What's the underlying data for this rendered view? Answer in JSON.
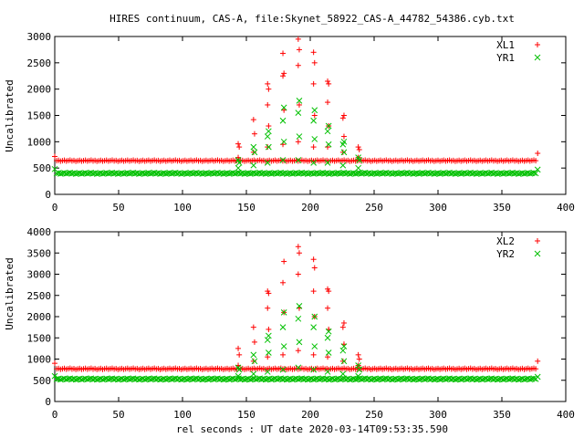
{
  "title": "HIRES continuum, CAS-A, file:Skynet_58922_CAS-A_44782_54386.cyb.txt",
  "xlabel": "rel seconds : UT date 2020-03-14T09:53:35.590",
  "colors": {
    "series1": "#ff0000",
    "series2": "#00c000",
    "axis": "#000000"
  },
  "chart_data": [
    {
      "type": "scatter",
      "ylabel": "Uncalibrated",
      "xlim": [
        0,
        400
      ],
      "ylim": [
        0,
        3000
      ],
      "xticks": [
        0,
        50,
        100,
        150,
        200,
        250,
        300,
        350,
        400
      ],
      "yticks": [
        0,
        500,
        1000,
        1500,
        2000,
        2500,
        3000
      ],
      "legend_position": "top-right",
      "grid": false,
      "series": [
        {
          "name": "XL1",
          "marker": "plus",
          "color": "#ff0000",
          "baseline": 640,
          "x_range": [
            0,
            378
          ],
          "start_spike": 720,
          "end_spike": 780,
          "transients": [
            {
              "x": 144,
              "values": [
                700,
                900,
                960
              ]
            },
            {
              "x": 156,
              "values": [
                800,
                1150,
                1420
              ]
            },
            {
              "x": 167,
              "values": [
                900,
                1300,
                1700,
                2000,
                2100
              ]
            },
            {
              "x": 179,
              "values": [
                950,
                1600,
                2250,
                2300,
                2680
              ]
            },
            {
              "x": 191,
              "values": [
                1000,
                1700,
                2450,
                2750,
                2950
              ]
            },
            {
              "x": 203,
              "values": [
                900,
                1500,
                2100,
                2500,
                2700
              ]
            },
            {
              "x": 214,
              "values": [
                900,
                1300,
                1750,
                2100,
                2150
              ]
            },
            {
              "x": 226,
              "values": [
                800,
                1100,
                1450,
                1500
              ]
            },
            {
              "x": 238,
              "values": [
                700,
                850,
                900
              ]
            }
          ]
        },
        {
          "name": "YR1",
          "marker": "cross",
          "color": "#00c000",
          "baseline": 400,
          "x_range": [
            0,
            378
          ],
          "start_spike": 480,
          "end_spike": 470,
          "transients": [
            {
              "x": 144,
              "values": [
                500,
                600,
                650
              ]
            },
            {
              "x": 156,
              "values": [
                550,
                800,
                900
              ]
            },
            {
              "x": 167,
              "values": [
                600,
                900,
                1100,
                1200
              ]
            },
            {
              "x": 179,
              "values": [
                650,
                1000,
                1400,
                1650
              ]
            },
            {
              "x": 191,
              "values": [
                650,
                1100,
                1550,
                1780
              ]
            },
            {
              "x": 203,
              "values": [
                600,
                1050,
                1400,
                1600
              ]
            },
            {
              "x": 214,
              "values": [
                600,
                950,
                1200,
                1300
              ]
            },
            {
              "x": 226,
              "values": [
                550,
                800,
                950,
                1000
              ]
            },
            {
              "x": 238,
              "values": [
                500,
                650,
                700
              ]
            }
          ]
        }
      ]
    },
    {
      "type": "scatter",
      "ylabel": "Uncalibrated",
      "xlim": [
        0,
        400
      ],
      "ylim": [
        0,
        4000
      ],
      "xticks": [
        0,
        50,
        100,
        150,
        200,
        250,
        300,
        350,
        400
      ],
      "yticks": [
        0,
        500,
        1000,
        1500,
        2000,
        2500,
        3000,
        3500,
        4000
      ],
      "legend_position": "top-right",
      "grid": false,
      "series": [
        {
          "name": "XL2",
          "marker": "plus",
          "color": "#ff0000",
          "baseline": 770,
          "x_range": [
            0,
            378
          ],
          "start_spike": 900,
          "end_spike": 950,
          "transients": [
            {
              "x": 144,
              "values": [
                850,
                1100,
                1250
              ]
            },
            {
              "x": 156,
              "values": [
                950,
                1400,
                1750
              ]
            },
            {
              "x": 167,
              "values": [
                1050,
                1700,
                2200,
                2550,
                2600
              ]
            },
            {
              "x": 179,
              "values": [
                1100,
                2100,
                2800,
                3300
              ]
            },
            {
              "x": 191,
              "values": [
                1200,
                2200,
                3000,
                3500,
                3650
              ]
            },
            {
              "x": 203,
              "values": [
                1100,
                2000,
                2600,
                3150,
                3350
              ]
            },
            {
              "x": 214,
              "values": [
                1050,
                1700,
                2200,
                2600,
                2650
              ]
            },
            {
              "x": 226,
              "values": [
                950,
                1350,
                1750,
                1850
              ]
            },
            {
              "x": 238,
              "values": [
                850,
                1000,
                1100
              ]
            }
          ]
        },
        {
          "name": "YR2",
          "marker": "cross",
          "color": "#00c000",
          "baseline": 530,
          "x_range": [
            0,
            378
          ],
          "start_spike": 600,
          "end_spike": 580,
          "transients": [
            {
              "x": 144,
              "values": [
                600,
                750,
                800
              ]
            },
            {
              "x": 156,
              "values": [
                650,
                950,
                1100
              ]
            },
            {
              "x": 167,
              "values": [
                700,
                1150,
                1450,
                1550
              ]
            },
            {
              "x": 179,
              "values": [
                750,
                1300,
                1750,
                2100
              ]
            },
            {
              "x": 191,
              "values": [
                800,
                1400,
                1950,
                2250
              ]
            },
            {
              "x": 203,
              "values": [
                750,
                1300,
                1750,
                2000
              ]
            },
            {
              "x": 214,
              "values": [
                700,
                1150,
                1500,
                1650
              ]
            },
            {
              "x": 226,
              "values": [
                650,
                950,
                1200,
                1300
              ]
            },
            {
              "x": 238,
              "values": [
                600,
                750,
                850
              ]
            }
          ]
        }
      ]
    }
  ]
}
